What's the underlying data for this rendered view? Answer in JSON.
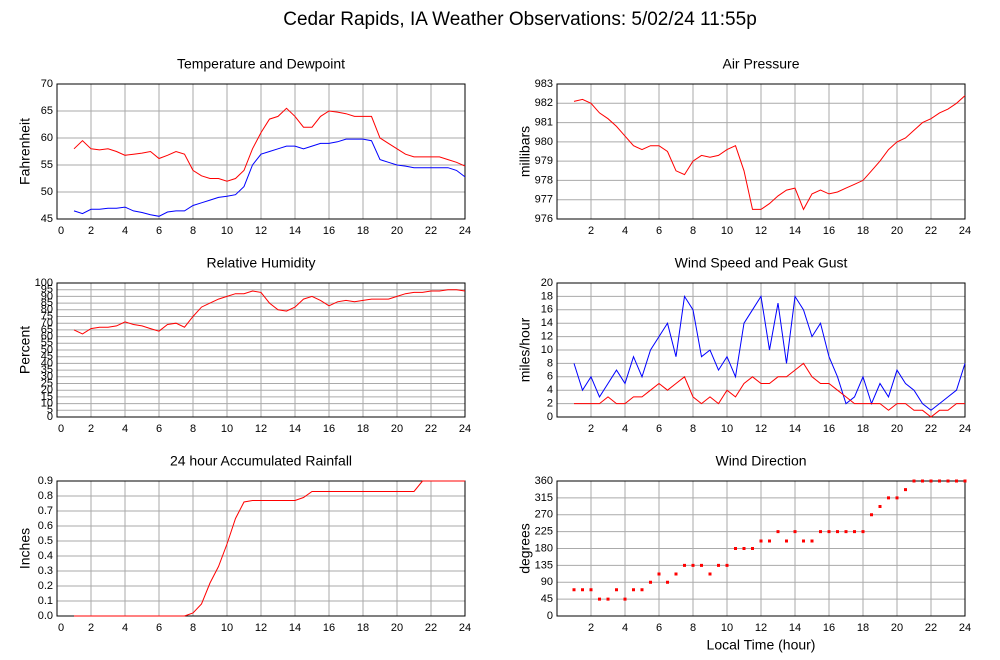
{
  "title": "Cedar Rapids, IA Weather Observations: 5/02/24 11:55p",
  "chart_data": [
    {
      "type": "line",
      "title": "Temperature and Dewpoint",
      "ylabel": "Fahrenheit",
      "grid": true,
      "xlim": [
        0,
        24
      ],
      "xticks": [
        0,
        2,
        4,
        6,
        8,
        10,
        12,
        14,
        16,
        18,
        20,
        22,
        24
      ],
      "ylim": [
        45,
        70
      ],
      "yticks": [
        45,
        50,
        55,
        60,
        65,
        70
      ],
      "x": [
        1,
        1.5,
        2,
        2.5,
        3,
        3.5,
        4,
        4.5,
        5,
        5.5,
        6,
        6.5,
        7,
        7.5,
        8,
        8.5,
        9,
        9.5,
        10,
        10.5,
        11,
        11.5,
        12,
        12.5,
        13,
        13.5,
        14,
        14.5,
        15,
        15.5,
        16,
        16.5,
        17,
        17.5,
        18,
        18.5,
        19,
        19.5,
        20,
        20.5,
        21,
        21.5,
        22,
        22.5,
        23,
        23.5,
        24
      ],
      "series": [
        {
          "name": "Temperature",
          "color": "#ff0000",
          "values": [
            58,
            59.5,
            58,
            57.8,
            58,
            57.5,
            56.8,
            57,
            57.2,
            57.5,
            56.2,
            56.8,
            57.5,
            57,
            54,
            53,
            52.5,
            52.5,
            52,
            52.5,
            54,
            58,
            61,
            63.5,
            64,
            65.5,
            64,
            62,
            62,
            64,
            65,
            64.8,
            64.5,
            64,
            64,
            64,
            60,
            59,
            58,
            57,
            56.5,
            56.5,
            56.5,
            56.5,
            56,
            55.5,
            54.8
          ]
        },
        {
          "name": "Dewpoint",
          "color": "#0000ff",
          "values": [
            46.5,
            46,
            46.8,
            46.8,
            47,
            47,
            47.2,
            46.5,
            46.2,
            45.8,
            45.5,
            46.3,
            46.5,
            46.5,
            47.5,
            48,
            48.5,
            49,
            49.2,
            49.5,
            51,
            55,
            57,
            57.5,
            58,
            58.5,
            58.5,
            58,
            58.5,
            59,
            59,
            59.3,
            59.8,
            59.8,
            59.8,
            59.5,
            56,
            55.5,
            55,
            54.8,
            54.5,
            54.5,
            54.5,
            54.5,
            54.5,
            54,
            52.8
          ]
        }
      ]
    },
    {
      "type": "line",
      "title": "Air Pressure",
      "ylabel": "millibars",
      "grid": true,
      "xlim": [
        0,
        24
      ],
      "xticks": [
        2,
        4,
        6,
        8,
        10,
        12,
        14,
        16,
        18,
        20,
        22,
        24
      ],
      "ylim": [
        976,
        983
      ],
      "yticks": [
        976,
        977,
        978,
        979,
        980,
        981,
        982,
        983
      ],
      "x": [
        1,
        1.5,
        2,
        2.5,
        3,
        3.5,
        4,
        4.5,
        5,
        5.5,
        6,
        6.5,
        7,
        7.5,
        8,
        8.5,
        9,
        9.5,
        10,
        10.5,
        11,
        11.5,
        12,
        12.5,
        13,
        13.5,
        14,
        14.5,
        15,
        15.5,
        16,
        16.5,
        17,
        17.5,
        18,
        18.5,
        19,
        19.5,
        20,
        20.5,
        21,
        21.5,
        22,
        22.5,
        23,
        23.5,
        24
      ],
      "series": [
        {
          "name": "Pressure",
          "color": "#ff0000",
          "values": [
            982.1,
            982.2,
            982,
            981.5,
            981.2,
            980.8,
            980.3,
            979.8,
            979.6,
            979.8,
            979.8,
            979.5,
            978.5,
            978.3,
            979,
            979.3,
            979.2,
            979.3,
            979.6,
            979.8,
            978.5,
            976.5,
            976.5,
            976.8,
            977.2,
            977.5,
            977.6,
            976.5,
            977.3,
            977.5,
            977.3,
            977.4,
            977.6,
            977.8,
            978,
            978.5,
            979,
            979.6,
            980,
            980.2,
            980.6,
            981,
            981.2,
            981.5,
            981.7,
            982,
            982.4
          ]
        }
      ]
    },
    {
      "type": "line",
      "title": "Relative Humidity",
      "ylabel": "Percent",
      "grid": true,
      "xlim": [
        0,
        24
      ],
      "xticks": [
        0,
        2,
        4,
        6,
        8,
        10,
        12,
        14,
        16,
        18,
        20,
        22,
        24
      ],
      "ylim": [
        0,
        100
      ],
      "yticks": [
        0,
        5,
        10,
        15,
        20,
        25,
        30,
        35,
        40,
        45,
        50,
        55,
        60,
        65,
        70,
        75,
        80,
        85,
        90,
        95,
        100
      ],
      "x": [
        1,
        1.5,
        2,
        2.5,
        3,
        3.5,
        4,
        4.5,
        5,
        5.5,
        6,
        6.5,
        7,
        7.5,
        8,
        8.5,
        9,
        9.5,
        10,
        10.5,
        11,
        11.5,
        12,
        12.5,
        13,
        13.5,
        14,
        14.5,
        15,
        15.5,
        16,
        16.5,
        17,
        17.5,
        18,
        18.5,
        19,
        19.5,
        20,
        20.5,
        21,
        21.5,
        22,
        22.5,
        23,
        23.5,
        24
      ],
      "series": [
        {
          "name": "Humidity",
          "color": "#ff0000",
          "values": [
            65,
            62,
            66,
            67,
            67,
            68,
            71,
            69,
            68,
            66,
            64,
            69,
            70,
            67,
            75,
            82,
            85,
            88,
            90,
            92,
            92,
            94,
            93,
            85,
            80,
            79,
            82,
            88,
            90,
            87,
            83,
            86,
            87,
            86,
            87,
            88,
            88,
            88,
            90,
            92,
            93,
            93,
            94,
            94,
            95,
            95,
            94
          ]
        }
      ]
    },
    {
      "type": "line",
      "title": "Wind Speed and Peak Gust",
      "ylabel": "miles/hour",
      "grid": true,
      "xlim": [
        0,
        24
      ],
      "xticks": [
        2,
        4,
        6,
        8,
        10,
        12,
        14,
        16,
        18,
        20,
        22,
        24
      ],
      "ylim": [
        0,
        20
      ],
      "yticks": [
        0,
        2,
        4,
        6,
        8,
        10,
        12,
        14,
        16,
        18,
        20
      ],
      "x": [
        1,
        1.5,
        2,
        2.5,
        3,
        3.5,
        4,
        4.5,
        5,
        5.5,
        6,
        6.5,
        7,
        7.5,
        8,
        8.5,
        9,
        9.5,
        10,
        10.5,
        11,
        11.5,
        12,
        12.5,
        13,
        13.5,
        14,
        14.5,
        15,
        15.5,
        16,
        16.5,
        17,
        17.5,
        18,
        18.5,
        19,
        19.5,
        20,
        20.5,
        21,
        21.5,
        22,
        22.5,
        23,
        23.5,
        24
      ],
      "series": [
        {
          "name": "Peak Gust",
          "color": "#0000ff",
          "values": [
            8,
            4,
            6,
            3,
            5,
            7,
            5,
            9,
            6,
            10,
            12,
            14,
            9,
            18,
            16,
            9,
            10,
            7,
            9,
            6,
            14,
            16,
            18,
            10,
            17,
            8,
            18,
            16,
            12,
            14,
            9,
            6,
            2,
            3,
            6,
            2,
            5,
            3,
            7,
            5,
            4,
            2,
            1,
            2,
            3,
            4,
            8
          ]
        },
        {
          "name": "Wind Speed",
          "color": "#ff0000",
          "values": [
            2,
            2,
            2,
            2,
            3,
            2,
            2,
            3,
            3,
            4,
            5,
            4,
            5,
            6,
            3,
            2,
            3,
            2,
            4,
            3,
            5,
            6,
            5,
            5,
            6,
            6,
            7,
            8,
            6,
            5,
            5,
            4,
            3,
            2,
            2,
            2,
            2,
            1,
            2,
            2,
            1,
            1,
            0,
            1,
            1,
            2,
            2
          ]
        }
      ]
    },
    {
      "type": "line",
      "title": "24 hour Accumulated Rainfall",
      "ylabel": "Inches",
      "grid": true,
      "xlim": [
        0,
        24
      ],
      "xticks": [
        0,
        2,
        4,
        6,
        8,
        10,
        12,
        14,
        16,
        18,
        20,
        22,
        24
      ],
      "ylim": [
        0,
        0.9
      ],
      "yticks": [
        {
          "value": 0,
          "label": "0.0"
        },
        0.1,
        0.2,
        0.3,
        0.4,
        0.5,
        0.6,
        0.7,
        0.8,
        0.9
      ],
      "x": [
        1,
        1.5,
        2,
        2.5,
        3,
        3.5,
        4,
        4.5,
        5,
        5.5,
        6,
        6.5,
        7,
        7.5,
        8,
        8.5,
        9,
        9.5,
        10,
        10.5,
        11,
        11.5,
        12,
        12.5,
        13,
        13.5,
        14,
        14.5,
        15,
        15.5,
        16,
        16.5,
        17,
        17.5,
        18,
        18.5,
        19,
        19.5,
        20,
        20.5,
        21,
        21.5,
        22,
        22.5,
        23,
        23.5,
        24
      ],
      "series": [
        {
          "name": "Rainfall",
          "color": "#ff0000",
          "values": [
            0,
            0,
            0,
            0,
            0,
            0,
            0,
            0,
            0,
            0,
            0,
            0,
            0,
            0,
            0.02,
            0.08,
            0.22,
            0.33,
            0.48,
            0.65,
            0.76,
            0.77,
            0.77,
            0.77,
            0.77,
            0.77,
            0.77,
            0.79,
            0.83,
            0.83,
            0.83,
            0.83,
            0.83,
            0.83,
            0.83,
            0.83,
            0.83,
            0.83,
            0.83,
            0.83,
            0.83,
            0.9,
            0.9,
            0.9,
            0.9,
            0.9,
            0.9
          ]
        }
      ]
    },
    {
      "type": "scatter",
      "title": "Wind Direction",
      "ylabel": "degrees",
      "xlabel": "Local Time (hour)",
      "grid": true,
      "xlim": [
        0,
        24
      ],
      "xticks": [
        2,
        4,
        6,
        8,
        10,
        12,
        14,
        16,
        18,
        20,
        22,
        24
      ],
      "ylim": [
        0,
        360
      ],
      "yticks": [
        0,
        45,
        90,
        135,
        180,
        225,
        270,
        315,
        360
      ],
      "x": [
        1,
        1.5,
        2,
        2.5,
        3,
        3.5,
        4,
        4.5,
        5,
        5.5,
        6,
        6.5,
        7,
        7.5,
        8,
        8.5,
        9,
        9.5,
        10,
        10.5,
        11,
        11.5,
        12,
        12.5,
        13,
        13.5,
        14,
        14.5,
        15,
        15.5,
        16,
        16.5,
        17,
        17.5,
        18,
        18.5,
        19,
        19.5,
        20,
        20.5,
        21,
        21.5,
        22,
        22.5,
        23,
        23.5,
        24
      ],
      "series": [
        {
          "name": "Direction",
          "color": "#ff0000",
          "values": [
            70,
            70,
            70,
            45,
            45,
            70,
            45,
            70,
            70,
            90,
            112,
            90,
            112,
            135,
            135,
            135,
            112,
            135,
            135,
            180,
            180,
            180,
            200,
            200,
            225,
            200,
            225,
            200,
            200,
            225,
            225,
            225,
            225,
            225,
            225,
            270,
            292,
            315,
            315,
            337,
            360,
            360,
            360,
            360,
            360,
            360,
            360
          ]
        }
      ]
    }
  ]
}
